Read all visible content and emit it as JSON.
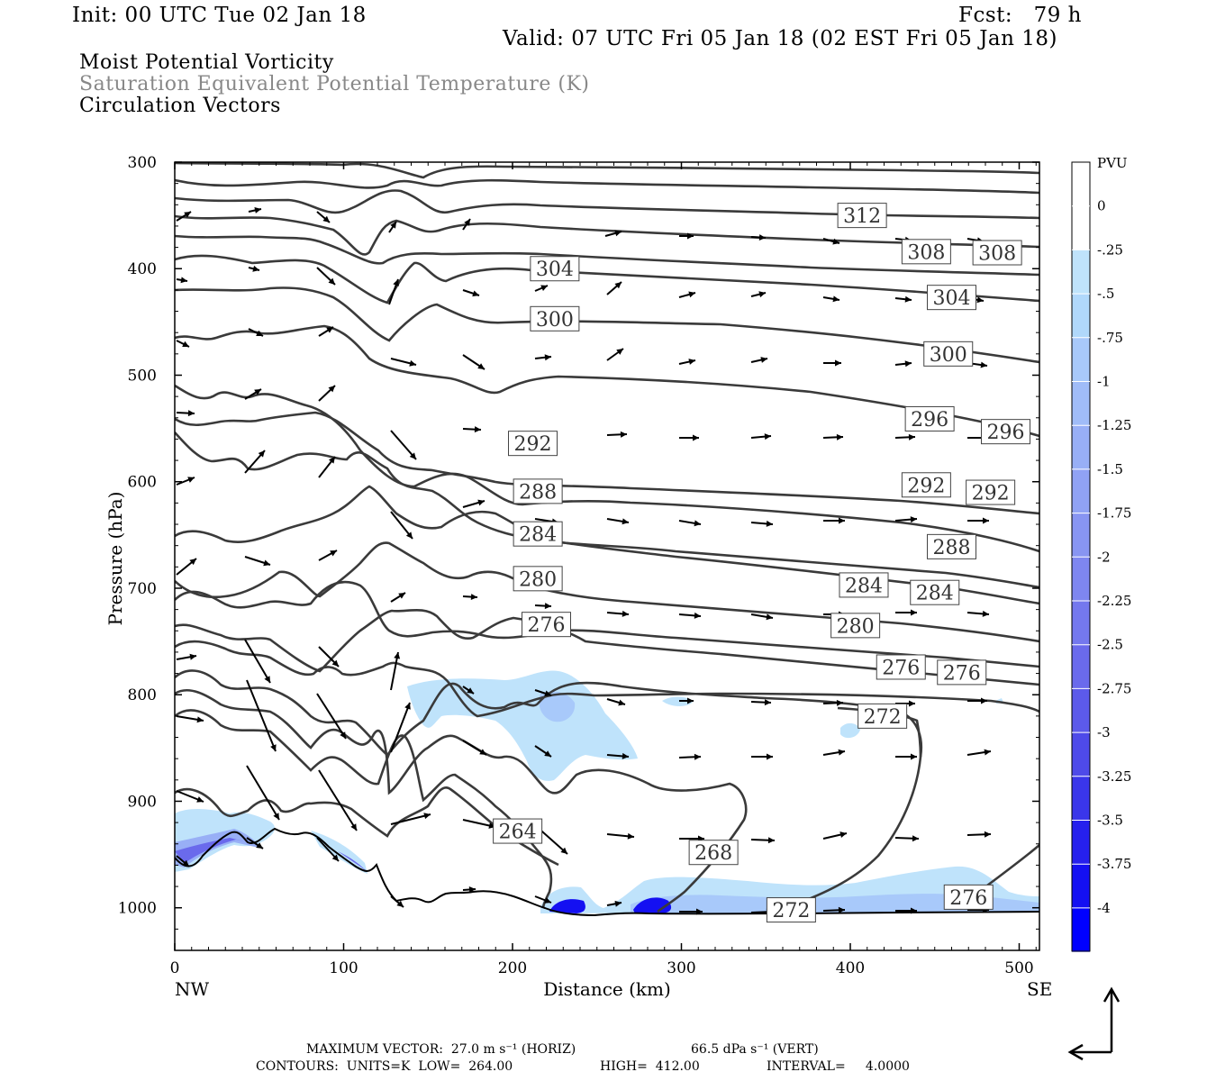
{
  "header": {
    "init": "Init: 00 UTC Tue 02 Jan 18",
    "fcst": "Fcst:   79 h",
    "valid": "Valid: 07 UTC Fri 05 Jan 18 (02 EST Fri 05 Jan 18)"
  },
  "fields": [
    "Moist Potential Vorticity",
    "Saturation Equivalent Potential Temperature (K)",
    "Circulation Vectors"
  ],
  "footer": {
    "max_vector_h": "MAXIMUM VECTOR:  27.0 m s⁻¹ (HORIZ)",
    "max_vector_v": "66.5 dPa s⁻¹ (VERT)",
    "contours": "CONTOURS:  UNITS=K  LOW=  264.00",
    "high": "HIGH=  412.00",
    "interval": "INTERVAL=     4.0000"
  },
  "colors": {
    "contour": "#3a3a3a",
    "pv_light": "#bfe3fb",
    "pv_dark": "#0000ff"
  },
  "chart_data": {
    "type": "cross-section",
    "xlabel": "Distance (km)",
    "ylabel": "Pressure (hPa)",
    "xlim": [
      0,
      512
    ],
    "ylim": [
      1040,
      300
    ],
    "x_ticks": [
      0,
      100,
      200,
      300,
      400,
      500
    ],
    "y_ticks": [
      300,
      400,
      500,
      600,
      700,
      800,
      900,
      1000
    ],
    "x_end_labels": [
      "NW",
      "SE"
    ],
    "colorbar": {
      "unit": "PVU",
      "levels": [
        "0",
        "-.25",
        "-.5",
        "-.75",
        "-1",
        "-1.25",
        "-1.5",
        "-1.75",
        "-2",
        "-2.25",
        "-2.5",
        "-2.75",
        "-3",
        "-3.25",
        "-3.5",
        "-3.75",
        "-4"
      ],
      "colors": [
        "#ffffff",
        "#ffffff",
        "#bfe3fb",
        "#b0d8fb",
        "#a8c9fa",
        "#a0bcf8",
        "#98aff6",
        "#90a2f4",
        "#8895f2",
        "#7e86f0",
        "#7478ee",
        "#6a6aec",
        "#5c5aea",
        "#4e4ae9",
        "#3a36ea",
        "#2620ed",
        "#1410f2",
        "#0000ff"
      ]
    },
    "contour_labels": [
      {
        "value": "312",
        "x": 407,
        "p": 350
      },
      {
        "value": "308",
        "x": 445,
        "p": 384
      },
      {
        "value": "308",
        "x": 487,
        "p": 385
      },
      {
        "value": "304",
        "x": 225,
        "p": 400
      },
      {
        "value": "304",
        "x": 460,
        "p": 427
      },
      {
        "value": "300",
        "x": 225,
        "p": 447
      },
      {
        "value": "300",
        "x": 458,
        "p": 480
      },
      {
        "value": "296",
        "x": 447,
        "p": 541
      },
      {
        "value": "296",
        "x": 492,
        "p": 553
      },
      {
        "value": "292",
        "x": 212,
        "p": 564
      },
      {
        "value": "292",
        "x": 445,
        "p": 603
      },
      {
        "value": "292",
        "x": 483,
        "p": 610
      },
      {
        "value": "288",
        "x": 215,
        "p": 609
      },
      {
        "value": "288",
        "x": 460,
        "p": 661
      },
      {
        "value": "284",
        "x": 215,
        "p": 649
      },
      {
        "value": "284",
        "x": 408,
        "p": 697
      },
      {
        "value": "284",
        "x": 450,
        "p": 704
      },
      {
        "value": "280",
        "x": 215,
        "p": 691
      },
      {
        "value": "280",
        "x": 403,
        "p": 735
      },
      {
        "value": "276",
        "x": 220,
        "p": 734
      },
      {
        "value": "276",
        "x": 430,
        "p": 774
      },
      {
        "value": "276",
        "x": 466,
        "p": 779
      },
      {
        "value": "276",
        "x": 470,
        "p": 990
      },
      {
        "value": "272",
        "x": 419,
        "p": 820
      },
      {
        "value": "272",
        "x": 365,
        "p": 1002
      },
      {
        "value": "268",
        "x": 319,
        "p": 948
      },
      {
        "value": "264",
        "x": 203,
        "p": 928
      }
    ],
    "max_vector": {
      "horiz": "27.0 m s-1",
      "vert": "66.5 dPa s-1"
    },
    "contour_units": "K",
    "contour_low": 264.0,
    "contour_high": 412.0,
    "contour_interval": 4.0
  }
}
